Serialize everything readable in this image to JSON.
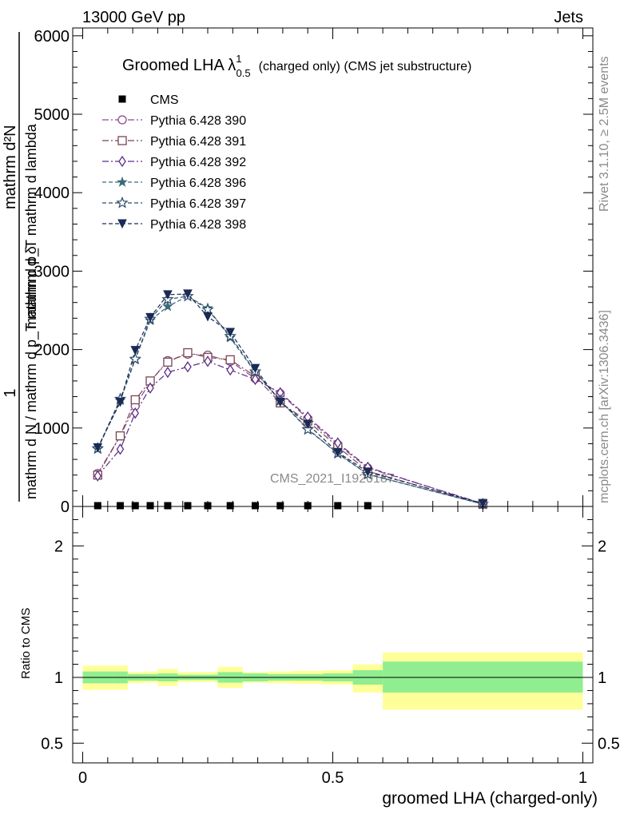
{
  "header": {
    "left": "13000 GeV pp",
    "right": "Jets"
  },
  "side_labels": {
    "rivet": "Rivet 3.1.10, ≥ 2.5M events",
    "mcplots": "mcplots.cern.ch [arXiv:1306.3436]"
  },
  "plot_title": {
    "main": "Groomed LHA ",
    "lambda": "λ",
    "sup": "1",
    "sub": "0.5",
    "rest": "(charged only) (CMS jet substructure)"
  },
  "watermark": "CMS_2021_I1920187",
  "ylabel": {
    "one": "1",
    "den": "mathrm d N / mathrm d p_T mathrm d δ",
    "num_top": "mathrm d²N",
    "num_bot": "mathrm d p_T mathrm d lambda"
  },
  "chart_data": [
    {
      "type": "line",
      "panel": "main",
      "xlim": [
        -0.02,
        1.02
      ],
      "ylim": [
        0,
        6100
      ],
      "y_ticks": [
        "0",
        "1000",
        "2000",
        "3000",
        "4000",
        "5000",
        "6000"
      ],
      "y_tick_values": [
        0,
        1000,
        2000,
        3000,
        4000,
        5000,
        6000
      ],
      "legend_position": "top-left",
      "data_series": {
        "name": "CMS",
        "color": "#000000",
        "x": [
          0.03,
          0.075,
          0.105,
          0.135,
          0.17,
          0.21,
          0.25,
          0.295,
          0.345,
          0.395,
          0.45,
          0.51,
          0.57
        ],
        "y": [
          0,
          0,
          0,
          0,
          0,
          0,
          0,
          0,
          0,
          0,
          0,
          0,
          0
        ]
      },
      "x": [
        0.03,
        0.075,
        0.105,
        0.135,
        0.17,
        0.21,
        0.25,
        0.295,
        0.345,
        0.395,
        0.45,
        0.51,
        0.57,
        0.8
      ],
      "series": [
        {
          "name": "Pythia 6.428 390",
          "marker": "circle-open",
          "color": "#8a4a8a",
          "dash": "8,3,2,3",
          "values": [
            420,
            900,
            1280,
            1590,
            1860,
            1940,
            1930,
            1850,
            1630,
            1440,
            1120,
            790,
            490,
            40
          ]
        },
        {
          "name": "Pythia 6.428 391",
          "marker": "square-open",
          "color": "#7a4450",
          "dash": "8,3,2,3",
          "values": [
            400,
            900,
            1360,
            1600,
            1840,
            1960,
            1900,
            1870,
            1660,
            1320,
            1090,
            760,
            450,
            30
          ]
        },
        {
          "name": "Pythia 6.428 392",
          "marker": "diamond-open",
          "color": "#5a2c8a",
          "dash": "8,3,2,3",
          "values": [
            390,
            730,
            1190,
            1510,
            1710,
            1780,
            1850,
            1740,
            1620,
            1450,
            1140,
            810,
            500,
            30
          ]
        },
        {
          "name": "Pythia 6.428 396",
          "marker": "star-filled",
          "color": "#3a6a7a",
          "dash": "5,3",
          "values": [
            730,
            1350,
            1870,
            2370,
            2550,
            2680,
            2530,
            2150,
            1710,
            1350,
            990,
            670,
            410,
            30
          ]
        },
        {
          "name": "Pythia 6.428 397",
          "marker": "star-open",
          "color": "#2e4a6a",
          "dash": "5,3",
          "values": [
            740,
            1370,
            1880,
            2390,
            2640,
            2680,
            2510,
            2170,
            1720,
            1350,
            980,
            680,
            410,
            30
          ]
        },
        {
          "name": "Pythia 6.428 398",
          "marker": "triangle-down-filled",
          "color": "#1a2a55",
          "dash": "5,3",
          "values": [
            750,
            1330,
            1990,
            2410,
            2700,
            2710,
            2420,
            2220,
            1760,
            1330,
            1050,
            690,
            440,
            40
          ]
        }
      ]
    },
    {
      "type": "area",
      "panel": "ratio",
      "ylabel": "Ratio to CMS",
      "xlabel": "groomed LHA (charged-only)",
      "xlim": [
        -0.02,
        1.02
      ],
      "ylim": [
        0.35,
        2.3
      ],
      "y_ticks": [
        "0.5",
        "1",
        "2"
      ],
      "y_tick_values": [
        0.5,
        1,
        2
      ],
      "x_ticks": [
        "0",
        "0.5",
        "1"
      ],
      "x_tick_values": [
        0,
        0.5,
        1
      ],
      "bin_edges": [
        0,
        0.06,
        0.09,
        0.12,
        0.15,
        0.19,
        0.23,
        0.27,
        0.32,
        0.37,
        0.42,
        0.48,
        0.54,
        0.6,
        1.0
      ],
      "stat_band": {
        "name": "stat",
        "color": "#90ee90",
        "lo": [
          0.955,
          0.955,
          0.975,
          0.975,
          0.97,
          0.98,
          0.98,
          0.96,
          0.97,
          0.975,
          0.975,
          0.97,
          0.945,
          0.885
        ],
        "hi": [
          1.045,
          1.045,
          1.025,
          1.025,
          1.03,
          1.02,
          1.02,
          1.04,
          1.03,
          1.025,
          1.025,
          1.03,
          1.055,
          1.12
        ]
      },
      "syst_band": {
        "name": "stat+syst",
        "color": "#ffff99",
        "lo": [
          0.905,
          0.905,
          0.955,
          0.96,
          0.935,
          0.965,
          0.965,
          0.92,
          0.96,
          0.955,
          0.95,
          0.945,
          0.885,
          0.755
        ],
        "hi": [
          1.09,
          1.09,
          1.04,
          1.045,
          1.065,
          1.04,
          1.04,
          1.08,
          1.04,
          1.045,
          1.05,
          1.055,
          1.1,
          1.19
        ]
      },
      "reference_line": 1.0
    }
  ]
}
